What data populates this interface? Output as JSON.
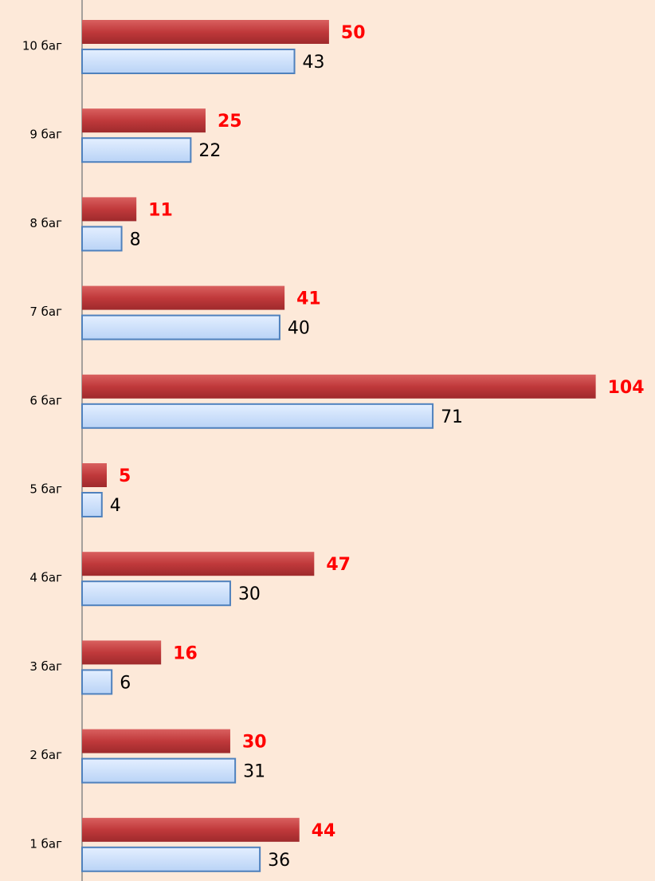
{
  "chart_data": {
    "type": "bar",
    "orientation": "horizontal",
    "categories": [
      "10 баг",
      "9 баг",
      "8 баг",
      "7 баг",
      "6 баг",
      "5 баг",
      "4 баг",
      "3 баг",
      "2 баг",
      "1 баг"
    ],
    "series": [
      {
        "color": "#c0393b",
        "label_color": "#ff0000",
        "values": [
          50,
          25,
          11,
          41,
          104,
          5,
          47,
          16,
          30,
          44
        ]
      },
      {
        "color": "#c9defa",
        "label_color": "#000000",
        "values": [
          43,
          22,
          8,
          40,
          71,
          4,
          30,
          6,
          31,
          36
        ]
      }
    ],
    "xlim": [
      0,
      116
    ],
    "background": "#fde9d9"
  }
}
